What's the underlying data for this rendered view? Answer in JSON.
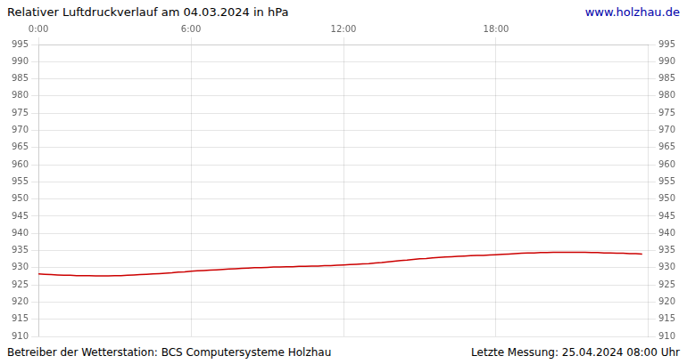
{
  "chart_data": {
    "type": "line",
    "title": "Relativer Luftdruckverlauf am 04.03.2024 in hPa",
    "annotations": [
      {
        "text": "www.holzhau.de",
        "color": "#0000aa"
      },
      {
        "text": "Betreiber der Wetterstation: BCS Computersysteme Holzhau"
      },
      {
        "text": "Letzte Messung: 25.04.2024 08:00 Uhr"
      }
    ],
    "x": [
      0.0,
      0.25,
      0.5,
      0.75,
      1.0,
      1.25,
      1.5,
      1.75,
      2.0,
      2.25,
      2.5,
      2.75,
      3.0,
      3.25,
      3.5,
      3.75,
      4.0,
      4.25,
      4.5,
      4.75,
      5.0,
      5.25,
      5.5,
      5.75,
      6.0,
      6.25,
      6.5,
      6.75,
      7.0,
      7.25,
      7.5,
      7.75,
      8.0,
      8.25,
      8.5,
      8.75,
      9.0,
      9.25,
      9.5,
      9.75,
      10.0,
      10.25,
      10.5,
      10.75,
      11.0,
      11.25,
      11.5,
      11.75,
      12.0,
      12.25,
      12.5,
      12.75,
      13.0,
      13.25,
      13.5,
      13.75,
      14.0,
      14.25,
      14.5,
      14.75,
      15.0,
      15.25,
      15.5,
      15.75,
      16.0,
      16.25,
      16.5,
      16.75,
      17.0,
      17.25,
      17.5,
      17.75,
      18.0,
      18.25,
      18.5,
      18.75,
      19.0,
      19.25,
      19.5,
      19.75,
      20.0,
      20.25,
      20.5,
      20.75,
      21.0,
      21.25,
      21.5,
      21.75,
      22.0,
      22.25,
      22.5,
      22.75,
      23.0,
      23.25,
      23.5,
      23.75
    ],
    "values": [
      928.2,
      928.1,
      928.0,
      927.9,
      927.8,
      927.8,
      927.7,
      927.7,
      927.7,
      927.6,
      927.6,
      927.6,
      927.7,
      927.7,
      927.8,
      927.9,
      928.0,
      928.1,
      928.2,
      928.3,
      928.4,
      928.5,
      928.7,
      928.8,
      929.0,
      929.1,
      929.2,
      929.3,
      929.4,
      929.5,
      929.6,
      929.7,
      929.8,
      929.9,
      930.0,
      930.0,
      930.1,
      930.2,
      930.2,
      930.3,
      930.3,
      930.4,
      930.4,
      930.5,
      930.5,
      930.6,
      930.6,
      930.7,
      930.8,
      930.9,
      931.0,
      931.1,
      931.2,
      931.4,
      931.5,
      931.7,
      931.9,
      932.1,
      932.2,
      932.4,
      932.6,
      932.7,
      932.9,
      933.0,
      933.1,
      933.2,
      933.3,
      933.4,
      933.5,
      933.6,
      933.6,
      933.7,
      933.8,
      933.9,
      934.0,
      934.1,
      934.2,
      934.3,
      934.3,
      934.4,
      934.4,
      934.5,
      934.5,
      934.5,
      934.5,
      934.5,
      934.5,
      934.4,
      934.4,
      934.3,
      934.3,
      934.2,
      934.2,
      934.1,
      934.1,
      934.0
    ],
    "color": "#cc0000",
    "xlim": [
      0,
      24
    ],
    "xticks": [
      {
        "value": 0,
        "label": "0:00"
      },
      {
        "value": 6,
        "label": "6:00"
      },
      {
        "value": 12,
        "label": "12:00"
      },
      {
        "value": 18,
        "label": "18:00"
      }
    ],
    "ylim": [
      910,
      995
    ],
    "yticks": [
      910,
      915,
      920,
      925,
      930,
      935,
      940,
      945,
      950,
      955,
      960,
      965,
      970,
      975,
      980,
      985,
      990,
      995
    ],
    "y2lim": [
      910,
      995
    ],
    "y2ticks": [
      910,
      915,
      920,
      925,
      930,
      935,
      940,
      945,
      950,
      955,
      960,
      965,
      970,
      975,
      980,
      985,
      990,
      995
    ],
    "grid": true
  }
}
